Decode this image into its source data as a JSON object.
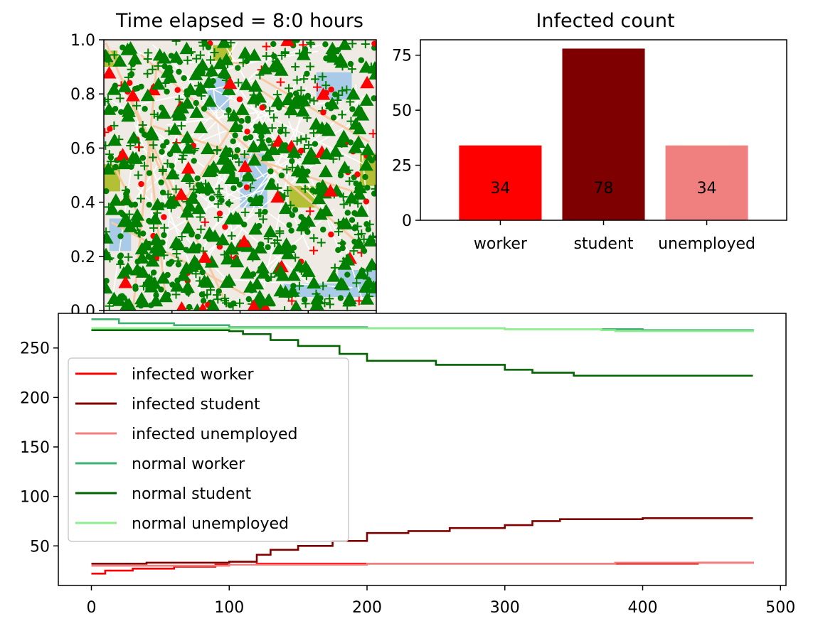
{
  "chart_data": [
    {
      "type": "scatter",
      "title": "Time elapsed = 8:0 hours",
      "xlim": [
        0,
        1
      ],
      "ylim": [
        0,
        1
      ],
      "yticks": [
        "0.0",
        "0.2",
        "0.4",
        "0.6",
        "0.8",
        "1.0"
      ],
      "legend": "none",
      "background": "map",
      "markers": {
        "infected": "#ff0000",
        "normal": "#008000",
        "shapes": [
          "triangle",
          "circle",
          "plus"
        ]
      },
      "approx_counts": {
        "triangle": 300,
        "circle": 300,
        "plus": 300
      }
    },
    {
      "type": "bar",
      "title": "Infected count",
      "categories": [
        "worker",
        "student",
        "unemployed"
      ],
      "values": [
        34,
        78,
        34
      ],
      "labels": [
        "34",
        "78",
        "34"
      ],
      "colors": [
        "#ff0000",
        "#7f0000",
        "#f08080"
      ],
      "ylim": [
        0,
        82
      ],
      "yticks": [
        "0",
        "25",
        "50",
        "75"
      ]
    },
    {
      "type": "line",
      "xlim": [
        -24,
        504
      ],
      "ylim": [
        10,
        285
      ],
      "xticks": [
        "0",
        "100",
        "200",
        "300",
        "400",
        "500"
      ],
      "yticks": [
        "50",
        "100",
        "150",
        "200",
        "250"
      ],
      "legend": "top-left",
      "series": [
        {
          "name": "infected worker",
          "color": "#ff0000",
          "points": [
            [
              0,
              22
            ],
            [
              10,
              25
            ],
            [
              30,
              27
            ],
            [
              60,
              29
            ],
            [
              90,
              31
            ],
            [
              120,
              32
            ],
            [
              200,
              32
            ],
            [
              300,
              32
            ],
            [
              400,
              32
            ],
            [
              440,
              33
            ],
            [
              480,
              34
            ]
          ]
        },
        {
          "name": "infected student",
          "color": "#800000",
          "points": [
            [
              0,
              32
            ],
            [
              40,
              33
            ],
            [
              100,
              34
            ],
            [
              120,
              41
            ],
            [
              130,
              46
            ],
            [
              150,
              50
            ],
            [
              175,
              55
            ],
            [
              200,
              63
            ],
            [
              230,
              65
            ],
            [
              260,
              68
            ],
            [
              300,
              71
            ],
            [
              320,
              75
            ],
            [
              340,
              77
            ],
            [
              400,
              78
            ],
            [
              480,
              78
            ]
          ]
        },
        {
          "name": "infected unemployed",
          "color": "#f08080",
          "points": [
            [
              0,
              30
            ],
            [
              100,
              31
            ],
            [
              200,
              32
            ],
            [
              300,
              32
            ],
            [
              370,
              32
            ],
            [
              380,
              33
            ],
            [
              480,
              34
            ]
          ]
        },
        {
          "name": "normal worker",
          "color": "#3cb371",
          "points": [
            [
              0,
              279
            ],
            [
              20,
              275
            ],
            [
              60,
              273
            ],
            [
              100,
              271
            ],
            [
              200,
              270
            ],
            [
              300,
              269
            ],
            [
              400,
              268
            ],
            [
              480,
              267
            ]
          ]
        },
        {
          "name": "normal student",
          "color": "#006400",
          "points": [
            [
              0,
              268
            ],
            [
              100,
              267
            ],
            [
              110,
              264
            ],
            [
              130,
              258
            ],
            [
              150,
              252
            ],
            [
              180,
              244
            ],
            [
              200,
              237
            ],
            [
              250,
              233
            ],
            [
              300,
              228
            ],
            [
              320,
              225
            ],
            [
              350,
              222
            ],
            [
              480,
              222
            ]
          ]
        },
        {
          "name": "normal unemployed",
          "color": "#90ee90",
          "points": [
            [
              0,
              270
            ],
            [
              200,
              270
            ],
            [
              300,
              269
            ],
            [
              370,
              268
            ],
            [
              380,
              267
            ],
            [
              480,
              266
            ]
          ]
        }
      ]
    }
  ]
}
